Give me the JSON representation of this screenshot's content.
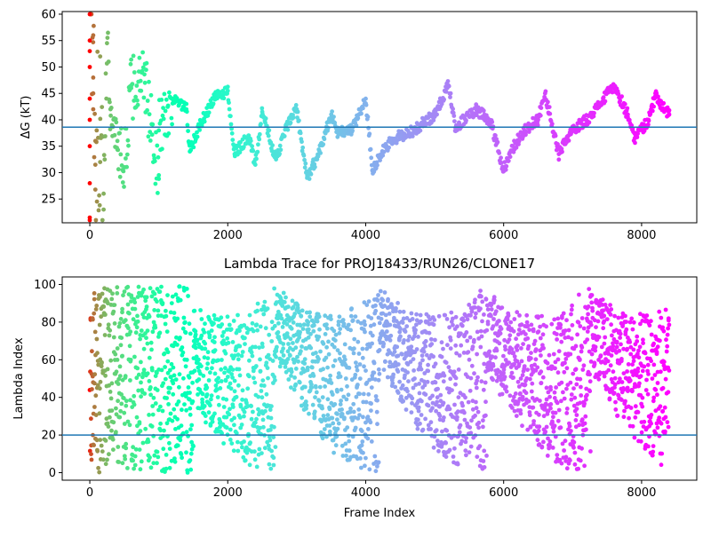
{
  "chart_data": [
    {
      "type": "scatter",
      "title": "",
      "xlabel": "",
      "ylabel": "ΔG (kT)",
      "xlim": [
        -400,
        8800
      ],
      "ylim": [
        20.5,
        60.5
      ],
      "xticks": [
        0,
        2000,
        4000,
        6000,
        8000
      ],
      "yticks": [
        25,
        30,
        35,
        40,
        45,
        50,
        55,
        60
      ],
      "hline": 38.6,
      "hline_color": "#1f77b4",
      "colormap": "rainbow (reversed: early frames red, late frames violet)",
      "n_frames": 8400,
      "series_points_approx": [
        [
          0,
          21.5
        ],
        [
          0,
          28
        ],
        [
          0,
          35
        ],
        [
          0,
          40
        ],
        [
          0,
          44
        ],
        [
          0,
          50
        ],
        [
          0,
          53
        ],
        [
          0,
          55
        ],
        [
          0,
          60
        ],
        [
          50,
          42
        ],
        [
          50,
          45
        ],
        [
          50,
          48
        ],
        [
          50,
          56
        ],
        [
          80,
          36
        ],
        [
          80,
          31.5
        ],
        [
          100,
          38
        ],
        [
          150,
          32
        ],
        [
          150,
          52
        ],
        [
          200,
          23
        ],
        [
          250,
          54.5
        ],
        [
          300,
          42
        ],
        [
          400,
          36
        ],
        [
          500,
          31
        ],
        [
          600,
          46
        ],
        [
          800,
          47
        ],
        [
          1000,
          29.5
        ],
        [
          1000,
          38
        ],
        [
          1200,
          44
        ],
        [
          1400,
          42
        ],
        [
          1450,
          34
        ],
        [
          1600,
          39
        ],
        [
          1800,
          44
        ],
        [
          2000,
          45.5
        ],
        [
          2100,
          33.5
        ],
        [
          2300,
          37
        ],
        [
          2400,
          31.5
        ],
        [
          2500,
          41.5
        ],
        [
          2700,
          32.5
        ],
        [
          2850,
          38.5
        ],
        [
          3000,
          42
        ],
        [
          3150,
          29
        ],
        [
          3300,
          33
        ],
        [
          3500,
          41
        ],
        [
          3600,
          37.5
        ],
        [
          3800,
          38
        ],
        [
          4000,
          44
        ],
        [
          4100,
          30.5
        ],
        [
          4300,
          35
        ],
        [
          4500,
          37
        ],
        [
          4700,
          38
        ],
        [
          5000,
          41
        ],
        [
          5200,
          46.5
        ],
        [
          5300,
          38.5
        ],
        [
          5600,
          42
        ],
        [
          5800,
          40
        ],
        [
          6000,
          30.5
        ],
        [
          6100,
          34
        ],
        [
          6300,
          38
        ],
        [
          6500,
          40
        ],
        [
          6600,
          45
        ],
        [
          6800,
          33.5
        ],
        [
          7000,
          38
        ],
        [
          7200,
          40
        ],
        [
          7400,
          43
        ],
        [
          7600,
          46.5
        ],
        [
          7800,
          41
        ],
        [
          7900,
          36.5
        ],
        [
          8100,
          40
        ],
        [
          8200,
          44.5
        ],
        [
          8400,
          41
        ]
      ]
    },
    {
      "type": "scatter",
      "title": "Lambda Trace for PROJ18433/RUN26/CLONE17",
      "xlabel": "Frame Index",
      "ylabel": "Lambda Index",
      "xlim": [
        -400,
        8800
      ],
      "ylim": [
        -4,
        104
      ],
      "xticks": [
        0,
        2000,
        4000,
        6000,
        8000
      ],
      "yticks": [
        0,
        20,
        40,
        60,
        80,
        100
      ],
      "hline": 20,
      "hline_color": "#1f77b4",
      "colormap": "rainbow (reversed: early frames red, late frames violet)",
      "n_frames": 8400,
      "value_range": [
        0,
        99
      ],
      "distribution": "dense scatter of lambda indices 0–99 across all frames"
    }
  ]
}
